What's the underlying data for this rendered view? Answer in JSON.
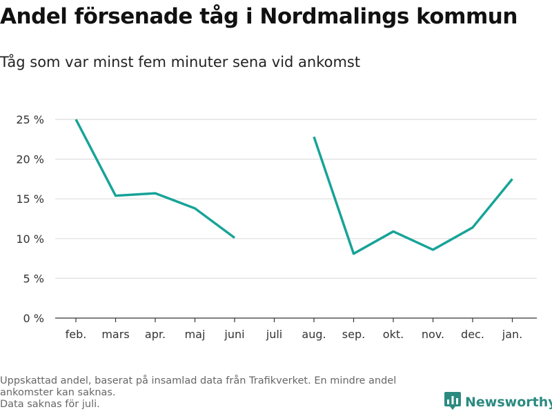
{
  "title": "Andel försenade tåg i Nordmalings kommun",
  "subtitle": "Tåg som var minst fem minuter sena vid ankomst",
  "footnote": {
    "line1": "Uppskattad andel, baserat på insamlad data från Trafikverket. En mindre andel",
    "line2": "ankomster kan saknas.",
    "line3": "Data saknas för juli."
  },
  "brand": {
    "name": "Newsworthy",
    "icon": "newsworthy-logo-icon"
  },
  "colors": {
    "line": "#17a398",
    "grid": "#dddddd",
    "axis": "#333333",
    "brand": "#2b8a80"
  },
  "chart_data": {
    "type": "line",
    "title": "Andel försenade tåg i Nordmalings kommun",
    "subtitle": "Tåg som var minst fem minuter sena vid ankomst",
    "categories": [
      "feb.",
      "mars",
      "apr.",
      "maj",
      "juni",
      "juli",
      "aug.",
      "sep.",
      "okt.",
      "nov.",
      "dec.",
      "jan."
    ],
    "series": [
      {
        "values": [
          25.0,
          15.4,
          15.7,
          13.8,
          10.1,
          null,
          22.8,
          8.1,
          10.9,
          8.6,
          11.4,
          17.5
        ]
      }
    ],
    "ylim": [
      0,
      25
    ],
    "yticks": [
      0,
      5,
      10,
      15,
      20,
      25
    ],
    "ytick_labels": [
      "0 %",
      "5 %",
      "10 %",
      "15 %",
      "20 %",
      "25 %"
    ],
    "grid": true,
    "legend": "none"
  }
}
